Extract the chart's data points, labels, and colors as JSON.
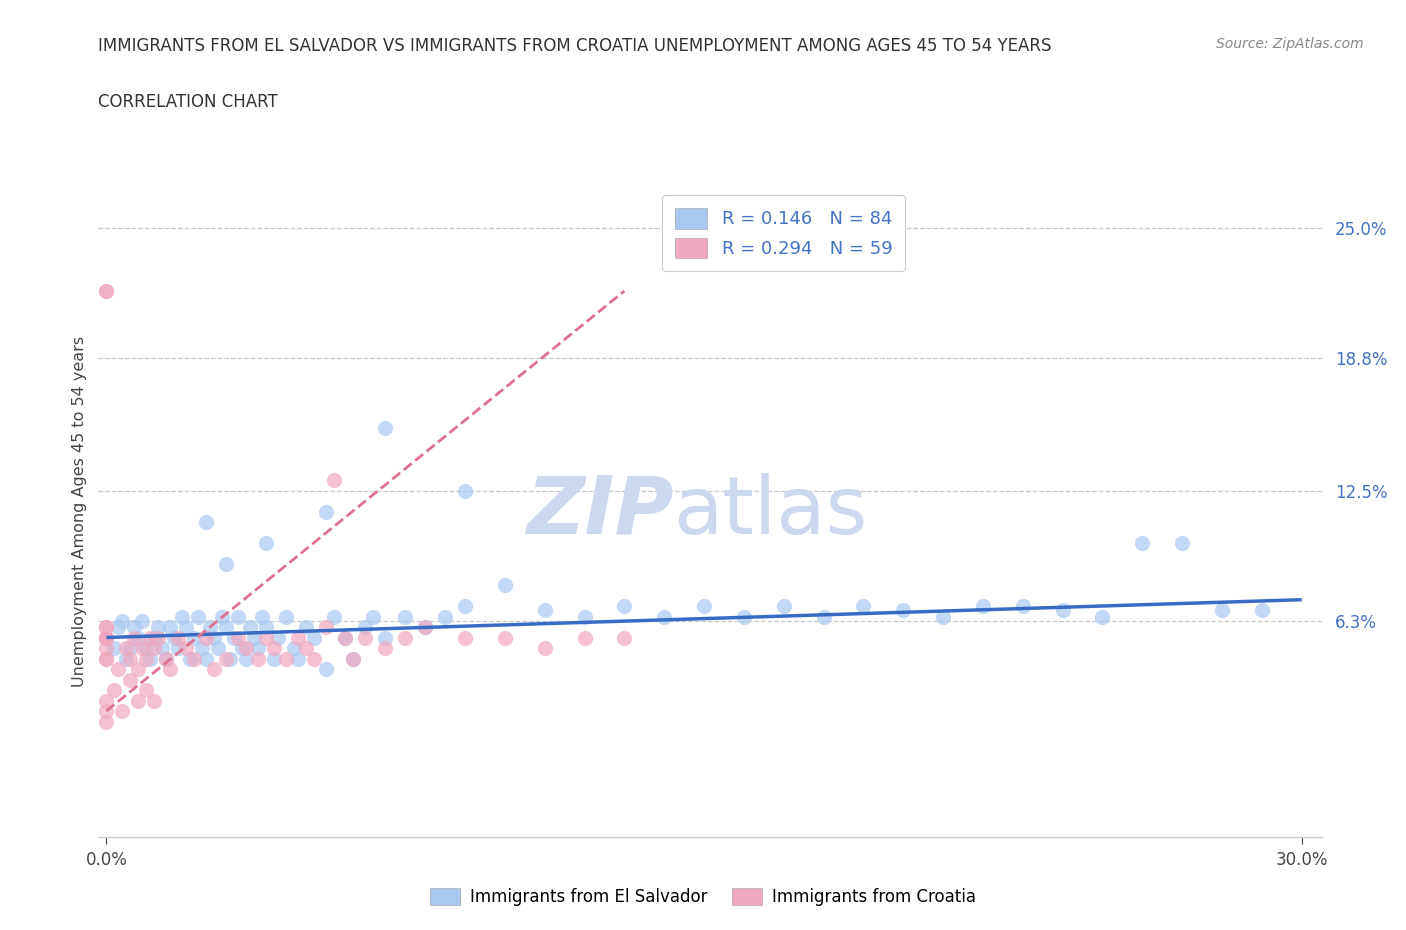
{
  "title_line1": "IMMIGRANTS FROM EL SALVADOR VS IMMIGRANTS FROM CROATIA UNEMPLOYMENT AMONG AGES 45 TO 54 YEARS",
  "title_line2": "CORRELATION CHART",
  "source": "Source: ZipAtlas.com",
  "ylabel": "Unemployment Among Ages 45 to 54 years",
  "color_salvador": "#a8c8f0",
  "color_croatia": "#f0a8be",
  "color_line_salvador": "#3a6bc4",
  "color_line_croatia": "#e07090",
  "color_text_blue": "#4472c4",
  "color_grid": "#c8c8c8",
  "r_salvador": "0.146",
  "n_salvador": 84,
  "r_croatia": "0.294",
  "n_croatia": 59,
  "legend_salvador": "Immigrants from El Salvador",
  "legend_croatia": "Immigrants from Croatia",
  "xlim": [
    -0.002,
    0.305
  ],
  "ylim": [
    -0.04,
    0.27
  ],
  "ytick_values": [
    0.063,
    0.125,
    0.188,
    0.25
  ],
  "ytick_labels": [
    "6.3%",
    "12.5%",
    "18.8%",
    "25.0%"
  ],
  "xtick_values": [
    0.0,
    0.3
  ],
  "xtick_labels": [
    "0.0%",
    "30.0%"
  ],
  "salvador_trend_x": [
    0.0,
    0.3
  ],
  "salvador_trend_y": [
    0.055,
    0.073
  ],
  "croatia_trend_x": [
    0.0,
    0.13
  ],
  "croatia_trend_y": [
    0.02,
    0.22
  ],
  "sal_x": [
    0.0,
    0.002,
    0.003,
    0.004,
    0.005,
    0.006,
    0.007,
    0.008,
    0.009,
    0.01,
    0.011,
    0.012,
    0.013,
    0.014,
    0.015,
    0.016,
    0.017,
    0.018,
    0.019,
    0.02,
    0.021,
    0.022,
    0.023,
    0.024,
    0.025,
    0.026,
    0.027,
    0.028,
    0.029,
    0.03,
    0.031,
    0.032,
    0.033,
    0.034,
    0.035,
    0.036,
    0.037,
    0.038,
    0.039,
    0.04,
    0.042,
    0.043,
    0.045,
    0.047,
    0.048,
    0.05,
    0.052,
    0.055,
    0.057,
    0.06,
    0.062,
    0.065,
    0.067,
    0.07,
    0.075,
    0.08,
    0.085,
    0.09,
    0.1,
    0.11,
    0.12,
    0.13,
    0.14,
    0.15,
    0.16,
    0.17,
    0.18,
    0.19,
    0.2,
    0.21,
    0.22,
    0.23,
    0.24,
    0.25,
    0.26,
    0.27,
    0.28,
    0.29,
    0.025,
    0.03,
    0.04,
    0.055,
    0.07,
    0.09
  ],
  "sal_y": [
    0.055,
    0.05,
    0.06,
    0.063,
    0.045,
    0.05,
    0.06,
    0.055,
    0.063,
    0.05,
    0.045,
    0.055,
    0.06,
    0.05,
    0.045,
    0.06,
    0.055,
    0.05,
    0.065,
    0.06,
    0.045,
    0.055,
    0.065,
    0.05,
    0.045,
    0.06,
    0.055,
    0.05,
    0.065,
    0.06,
    0.045,
    0.055,
    0.065,
    0.05,
    0.045,
    0.06,
    0.055,
    0.05,
    0.065,
    0.06,
    0.045,
    0.055,
    0.065,
    0.05,
    0.045,
    0.06,
    0.055,
    0.04,
    0.065,
    0.055,
    0.045,
    0.06,
    0.065,
    0.055,
    0.065,
    0.06,
    0.065,
    0.07,
    0.08,
    0.068,
    0.065,
    0.07,
    0.065,
    0.07,
    0.065,
    0.07,
    0.065,
    0.07,
    0.068,
    0.065,
    0.07,
    0.07,
    0.068,
    0.065,
    0.1,
    0.1,
    0.068,
    0.068,
    0.11,
    0.09,
    0.1,
    0.115,
    0.155,
    0.125
  ],
  "cro_x": [
    0.0,
    0.0,
    0.0,
    0.0,
    0.0,
    0.0,
    0.0,
    0.0,
    0.0,
    0.0,
    0.0,
    0.0,
    0.0,
    0.003,
    0.005,
    0.006,
    0.007,
    0.008,
    0.009,
    0.01,
    0.011,
    0.012,
    0.013,
    0.015,
    0.016,
    0.018,
    0.02,
    0.022,
    0.025,
    0.027,
    0.03,
    0.033,
    0.035,
    0.038,
    0.04,
    0.042,
    0.045,
    0.048,
    0.05,
    0.052,
    0.055,
    0.057,
    0.06,
    0.062,
    0.065,
    0.07,
    0.075,
    0.08,
    0.09,
    0.1,
    0.11,
    0.12,
    0.13,
    0.002,
    0.004,
    0.006,
    0.008,
    0.01,
    0.012
  ],
  "cro_y": [
    0.22,
    0.22,
    0.055,
    0.045,
    0.055,
    0.05,
    0.06,
    0.045,
    0.055,
    0.06,
    0.025,
    0.02,
    0.015,
    0.04,
    0.05,
    0.045,
    0.055,
    0.04,
    0.05,
    0.045,
    0.055,
    0.05,
    0.055,
    0.045,
    0.04,
    0.055,
    0.05,
    0.045,
    0.055,
    0.04,
    0.045,
    0.055,
    0.05,
    0.045,
    0.055,
    0.05,
    0.045,
    0.055,
    0.05,
    0.045,
    0.06,
    0.13,
    0.055,
    0.045,
    0.055,
    0.05,
    0.055,
    0.06,
    0.055,
    0.055,
    0.05,
    0.055,
    0.055,
    0.03,
    0.02,
    0.035,
    0.025,
    0.03,
    0.025
  ]
}
